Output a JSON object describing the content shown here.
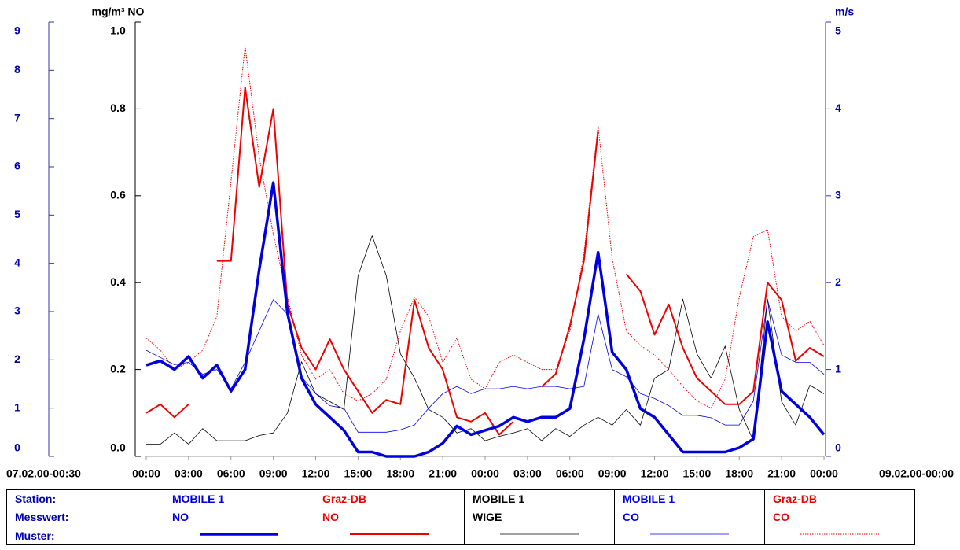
{
  "chart_data": {
    "type": "line",
    "y_label": "mg/m³ NO",
    "y2_label": "m/s",
    "x_start_label": "07.02.00-00:30",
    "x_end_label": "09.02.00-00:00",
    "xlim": [
      0,
      48
    ],
    "xticks": [
      {
        "value": 0,
        "label": "00:00"
      },
      {
        "value": 3,
        "label": "03:00"
      },
      {
        "value": 6,
        "label": "06:00"
      },
      {
        "value": 9,
        "label": "09:00"
      },
      {
        "value": 12,
        "label": "12:00"
      },
      {
        "value": 15,
        "label": "15:00"
      },
      {
        "value": 18,
        "label": "18:00"
      },
      {
        "value": 21,
        "label": "21:00"
      },
      {
        "value": 24,
        "label": "00:00"
      },
      {
        "value": 27,
        "label": "03:00"
      },
      {
        "value": 30,
        "label": "06:00"
      },
      {
        "value": 33,
        "label": "09:00"
      },
      {
        "value": 36,
        "label": "12:00"
      },
      {
        "value": 39,
        "label": "15:00"
      },
      {
        "value": 42,
        "label": "18:00"
      },
      {
        "value": 45,
        "label": "21:00"
      },
      {
        "value": 48,
        "label": "00:00"
      }
    ],
    "ylim": [
      0,
      1
    ],
    "yticks": [
      {
        "value": 0,
        "label": "0.0"
      },
      0.2,
      0.4,
      0.6,
      0.8,
      {
        "value": 1,
        "label": "1.0"
      }
    ],
    "y2lim": [
      0,
      5
    ],
    "y2ticks": [
      0,
      1,
      2,
      3,
      4,
      5
    ],
    "y3lim": [
      0,
      9
    ],
    "y3ticks": [
      0,
      1,
      2,
      3,
      4,
      5,
      6,
      7,
      8,
      9
    ],
    "legend_rows": [
      "Station:",
      "Messwert:",
      "Muster:"
    ],
    "x": [
      0,
      1,
      2,
      3,
      4,
      5,
      6,
      7,
      8,
      9,
      10,
      11,
      12,
      13,
      14,
      15,
      16,
      17,
      18,
      19,
      20,
      21,
      22,
      23,
      24,
      25,
      26,
      27,
      28,
      29,
      30,
      31,
      32,
      33,
      34,
      35,
      36,
      37,
      38,
      39,
      40,
      41,
      42,
      43,
      44,
      45,
      46,
      47,
      48
    ],
    "series": [
      {
        "station": "MOBILE 1",
        "name": "NO",
        "color": "#0000dd",
        "axis": "y",
        "style": "thick",
        "values": [
          0.21,
          0.22,
          0.2,
          0.23,
          0.18,
          0.21,
          0.15,
          0.2,
          0.43,
          0.63,
          0.33,
          0.18,
          0.12,
          0.09,
          0.06,
          0.01,
          0.01,
          0.0,
          0.0,
          0.0,
          0.01,
          0.03,
          0.07,
          0.05,
          0.06,
          0.07,
          0.09,
          0.08,
          0.09,
          0.09,
          0.11,
          0.27,
          0.47,
          0.24,
          0.2,
          0.11,
          0.09,
          0.05,
          0.01,
          0.01,
          0.01,
          0.01,
          0.02,
          0.04,
          0.31,
          0.15,
          0.12,
          0.09,
          0.05
        ]
      },
      {
        "station": "Graz-DB",
        "name": "NO",
        "color": "#ee0000",
        "axis": "y",
        "style": "medium",
        "values": [
          0.1,
          0.12,
          0.09,
          0.12,
          null,
          0.45,
          0.45,
          0.85,
          0.62,
          0.8,
          0.35,
          0.25,
          0.2,
          0.27,
          0.2,
          0.15,
          0.1,
          0.13,
          0.12,
          0.36,
          0.25,
          0.2,
          0.09,
          0.08,
          0.1,
          0.05,
          0.08,
          null,
          0.16,
          0.19,
          0.3,
          0.45,
          0.75,
          null,
          0.42,
          0.38,
          0.28,
          0.35,
          0.25,
          0.18,
          0.15,
          0.12,
          0.12,
          0.15,
          0.4,
          0.36,
          0.22,
          0.25,
          0.23
        ]
      },
      {
        "station": "MOBILE 1",
        "name": "WIGE",
        "color": "#000000",
        "axis": "y2",
        "style": "thin",
        "values": [
          0.14,
          0.14,
          0.27,
          0.14,
          0.32,
          0.18,
          0.18,
          0.18,
          0.24,
          0.27,
          0.5,
          1.09,
          0.72,
          0.63,
          0.54,
          2.08,
          2.54,
          2.08,
          1.18,
          0.9,
          0.54,
          0.45,
          0.27,
          0.32,
          0.18,
          0.23,
          0.27,
          0.32,
          0.18,
          0.32,
          0.23,
          0.36,
          0.45,
          0.36,
          0.54,
          0.36,
          0.9,
          1.0,
          1.81,
          1.18,
          0.9,
          1.27,
          0.54,
          0.18,
          1.81,
          0.63,
          0.36,
          0.82,
          0.72
        ]
      },
      {
        "station": "MOBILE 1",
        "name": "CO",
        "color": "#0000ee",
        "axis": "y3",
        "style": "thin",
        "values": [
          2.2,
          2.05,
          1.9,
          1.95,
          1.7,
          1.8,
          1.4,
          1.95,
          2.6,
          3.25,
          2.95,
          1.65,
          1.3,
          1.05,
          1.0,
          0.5,
          0.5,
          0.5,
          0.55,
          0.65,
          1.0,
          1.3,
          1.45,
          1.3,
          1.4,
          1.4,
          1.45,
          1.4,
          1.45,
          1.45,
          1.4,
          1.45,
          2.95,
          1.8,
          1.65,
          1.3,
          1.2,
          1.05,
          0.85,
          0.85,
          0.8,
          0.65,
          0.65,
          1.15,
          3.25,
          2.1,
          1.95,
          1.95,
          1.7
        ]
      },
      {
        "station": "Graz-DB",
        "name": "CO",
        "color": "#ee0000",
        "axis": "y3",
        "style": "dotted",
        "values": [
          2.45,
          2.2,
          1.8,
          1.95,
          2.2,
          2.9,
          5.7,
          8.5,
          6.2,
          4.6,
          3.3,
          2.1,
          1.6,
          1.8,
          1.3,
          1.15,
          1.3,
          1.6,
          2.6,
          3.3,
          2.9,
          1.95,
          2.45,
          1.6,
          1.4,
          1.95,
          2.1,
          1.95,
          1.8,
          1.8,
          2.6,
          4.2,
          6.85,
          4.1,
          2.6,
          2.3,
          2.1,
          1.8,
          1.45,
          1.15,
          1.0,
          1.6,
          3.3,
          4.55,
          4.7,
          2.9,
          2.6,
          2.8,
          2.3
        ]
      }
    ]
  }
}
